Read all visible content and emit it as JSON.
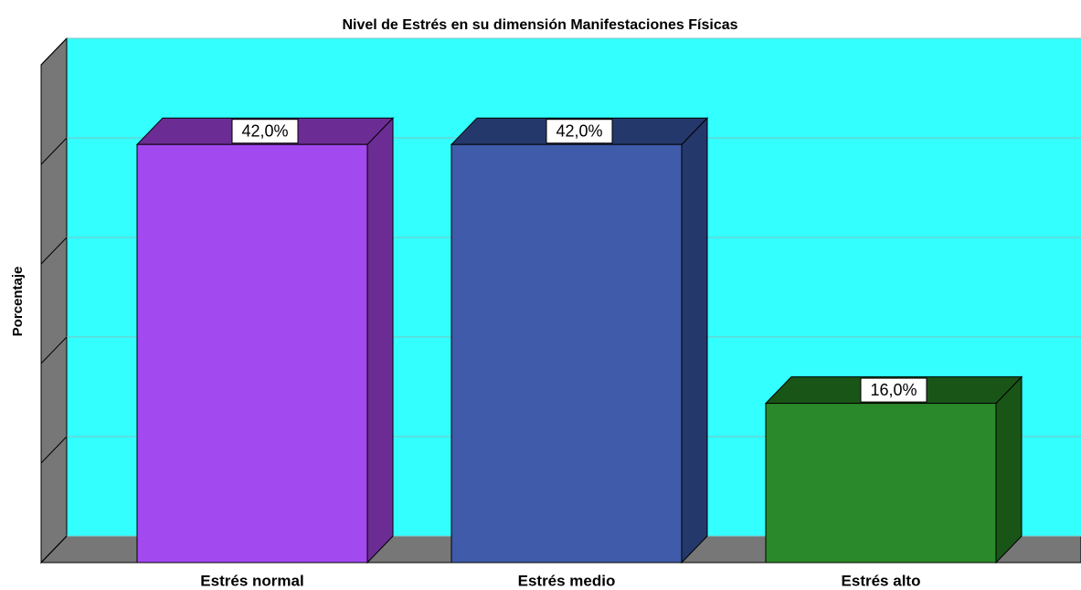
{
  "chart_data": {
    "type": "bar3d",
    "title": "Nivel de Estrés en su dimensión Manifestaciones Físicas",
    "y_label": "Porcentaje",
    "categories": [
      "Estrés normal",
      "Estrés medio",
      "Estrés alto"
    ],
    "values": [
      42,
      42,
      16
    ],
    "value_labels": [
      "42,0%",
      "42,0%",
      "16,0%"
    ],
    "colors": [
      "#a349f0",
      "#3f5ba9",
      "#2a892a"
    ],
    "side_colors": [
      "#6b2d94",
      "#25386b",
      "#1a5518"
    ],
    "ylim": [
      0,
      50
    ],
    "yticks": [
      0,
      10,
      20,
      30,
      40,
      50
    ],
    "grid": true
  }
}
